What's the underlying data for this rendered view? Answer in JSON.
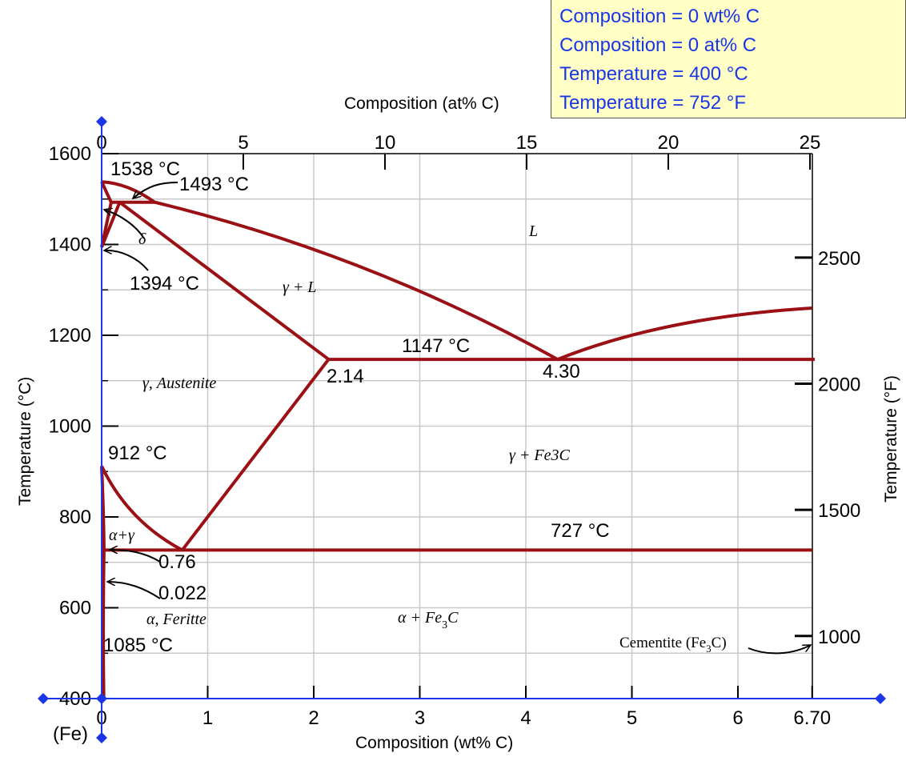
{
  "readout": {
    "line1": "Composition = 0 wt% C",
    "line2": "Composition = 0 at% C",
    "line3": "Temperature = 400 °C",
    "line4": "Temperature = 752 °F"
  },
  "colors": {
    "phase_line": "#9b1015",
    "cursor": "#1a36e8",
    "grid": "#c8c8c8",
    "readout_bg": "#ffffc6",
    "readout_text": "#1a36e8"
  },
  "axes": {
    "bottom_title": "Composition (wt% C)",
    "top_title": "Composition (at% C)",
    "left_title": "Temperature (°C)",
    "right_title": "Temperature (°F)",
    "fe_label": "(Fe)",
    "wt_ticks": [
      {
        "v": 0,
        "label": "0"
      },
      {
        "v": 1,
        "label": "1"
      },
      {
        "v": 2,
        "label": "2"
      },
      {
        "v": 3,
        "label": "3"
      },
      {
        "v": 4,
        "label": "4"
      },
      {
        "v": 5,
        "label": "5"
      },
      {
        "v": 6,
        "label": "6"
      },
      {
        "v": 6.7,
        "label": "6.70"
      }
    ],
    "at_ticks": [
      {
        "v": 0,
        "label": "0"
      },
      {
        "v": 5,
        "label": "5"
      },
      {
        "v": 10,
        "label": "10"
      },
      {
        "v": 15,
        "label": "15"
      },
      {
        "v": 20,
        "label": "20"
      },
      {
        "v": 25,
        "label": "25"
      }
    ],
    "c_ticks": [
      {
        "v": 400,
        "label": "400"
      },
      {
        "v": 600,
        "label": "600"
      },
      {
        "v": 800,
        "label": "800"
      },
      {
        "v": 1000,
        "label": "1000"
      },
      {
        "v": 1200,
        "label": "1200"
      },
      {
        "v": 1400,
        "label": "1400"
      },
      {
        "v": 1600,
        "label": "1600"
      }
    ],
    "f_ticks": [
      {
        "v": 1000,
        "label": "1000"
      },
      {
        "v": 1500,
        "label": "1500"
      },
      {
        "v": 2000,
        "label": "2000"
      },
      {
        "v": 2500,
        "label": "2500"
      }
    ]
  },
  "annotations": {
    "t1538": "1538 °C",
    "t1493": "1493 °C",
    "t1394": "1394 °C",
    "t1147": "1147 °C",
    "t912": "912 °C",
    "t727": "727 °C",
    "t1085": "1085 °C",
    "c214": "2.14",
    "c430": "4.30",
    "c076": "0.76",
    "c0022": "0.022",
    "cementite": "Cementite (Fe",
    "cementite_sub": "3",
    "cementite_end": "C)"
  },
  "phases": {
    "L": "L",
    "delta": "δ",
    "gamma_L": "γ + L",
    "austenite": "γ, Austenite",
    "gamma_fe3c": "γ + Fe3C",
    "alpha_gamma": "α+γ",
    "ferrite": "α, Feritte",
    "alpha_fe3c_a": "α + Fe",
    "alpha_fe3c_sub": "3",
    "alpha_fe3c_b": "C"
  },
  "cursor": {
    "wt": 0,
    "temp_c": 400
  },
  "chart_data": {
    "type": "phase-diagram",
    "x_range_wt": [
      0,
      6.7
    ],
    "x_range_at": [
      0,
      25
    ],
    "y_range_c": [
      400,
      1600
    ],
    "y_range_f_ticks": [
      1000,
      1500,
      2000,
      2500
    ],
    "grid": true,
    "phase_boundaries": [
      {
        "name": "liquidus",
        "points": [
          [
            0,
            1538
          ],
          [
            0.5,
            1493
          ],
          [
            4.3,
            1147
          ],
          [
            6.7,
            1260
          ]
        ]
      },
      {
        "name": "delta-solidus",
        "points": [
          [
            0,
            1538
          ],
          [
            0.09,
            1493
          ]
        ]
      },
      {
        "name": "peritectic",
        "points": [
          [
            0.09,
            1493
          ],
          [
            0.5,
            1493
          ]
        ]
      },
      {
        "name": "delta-gamma",
        "points": [
          [
            0,
            1394
          ],
          [
            0.09,
            1493
          ]
        ]
      },
      {
        "name": "delta-gamma-2",
        "points": [
          [
            0,
            1394
          ],
          [
            0.17,
            1493
          ]
        ]
      },
      {
        "name": "gamma-solidus",
        "points": [
          [
            0.17,
            1493
          ],
          [
            2.14,
            1147
          ]
        ]
      },
      {
        "name": "eutectic",
        "points": [
          [
            2.14,
            1147
          ],
          [
            6.7,
            1147
          ]
        ]
      },
      {
        "name": "acm",
        "points": [
          [
            2.14,
            1147
          ],
          [
            0.76,
            727
          ]
        ]
      },
      {
        "name": "a3",
        "points": [
          [
            0,
            912
          ],
          [
            0.76,
            727
          ]
        ]
      },
      {
        "name": "alpha-gamma",
        "points": [
          [
            0,
            912
          ],
          [
            0.022,
            727
          ]
        ]
      },
      {
        "name": "eutectoid",
        "points": [
          [
            0.022,
            727
          ],
          [
            6.7,
            727
          ]
        ]
      },
      {
        "name": "solvus",
        "points": [
          [
            0.022,
            727
          ],
          [
            0.008,
            600
          ],
          [
            0,
            400
          ]
        ]
      }
    ]
  }
}
